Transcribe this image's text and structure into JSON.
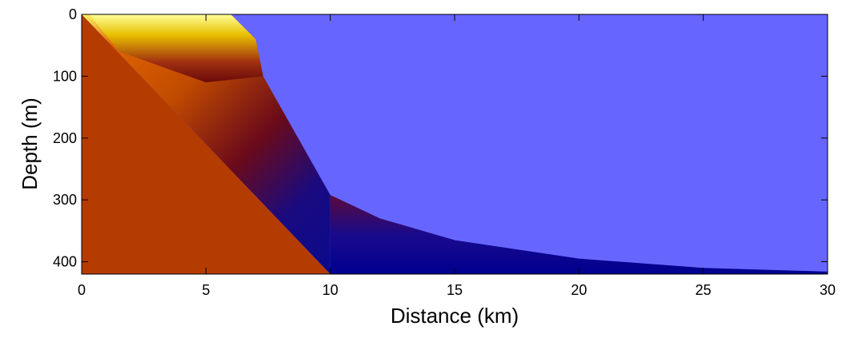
{
  "chart_data": {
    "type": "heatmap",
    "title": "",
    "xlabel": "Distance (km)",
    "ylabel": "Depth (m)",
    "xlim": [
      0,
      30
    ],
    "ylim": [
      0,
      420
    ],
    "y_reversed": true,
    "xticks": [
      0,
      5,
      10,
      15,
      20,
      25,
      30
    ],
    "yticks": [
      0,
      100,
      200,
      300,
      400
    ],
    "xtick_labels": [
      "0",
      "5",
      "10",
      "15",
      "20",
      "25",
      "30"
    ],
    "ytick_labels": [
      "0",
      "100",
      "200",
      "300",
      "400"
    ],
    "grid": false,
    "colors": {
      "background_field": "#6666ff",
      "bottom": "#b43c00",
      "deep": "#0a0a8c",
      "mid": "#7a0a0a",
      "upper": "#e06400",
      "surface": "#e8e000"
    },
    "water_boundary": [
      {
        "x": 6.0,
        "depth": 0
      },
      {
        "x": 7.0,
        "depth": 40
      },
      {
        "x": 7.3,
        "depth": 100
      },
      {
        "x": 10.0,
        "depth": 292
      },
      {
        "x": 12.0,
        "depth": 330
      },
      {
        "x": 15.0,
        "depth": 365
      },
      {
        "x": 20.0,
        "depth": 395
      },
      {
        "x": 25.0,
        "depth": 410
      },
      {
        "x": 30.0,
        "depth": 416
      }
    ],
    "seafloor": [
      {
        "x": 0.0,
        "depth": 0
      },
      {
        "x": 10.0,
        "depth": 420
      }
    ]
  }
}
